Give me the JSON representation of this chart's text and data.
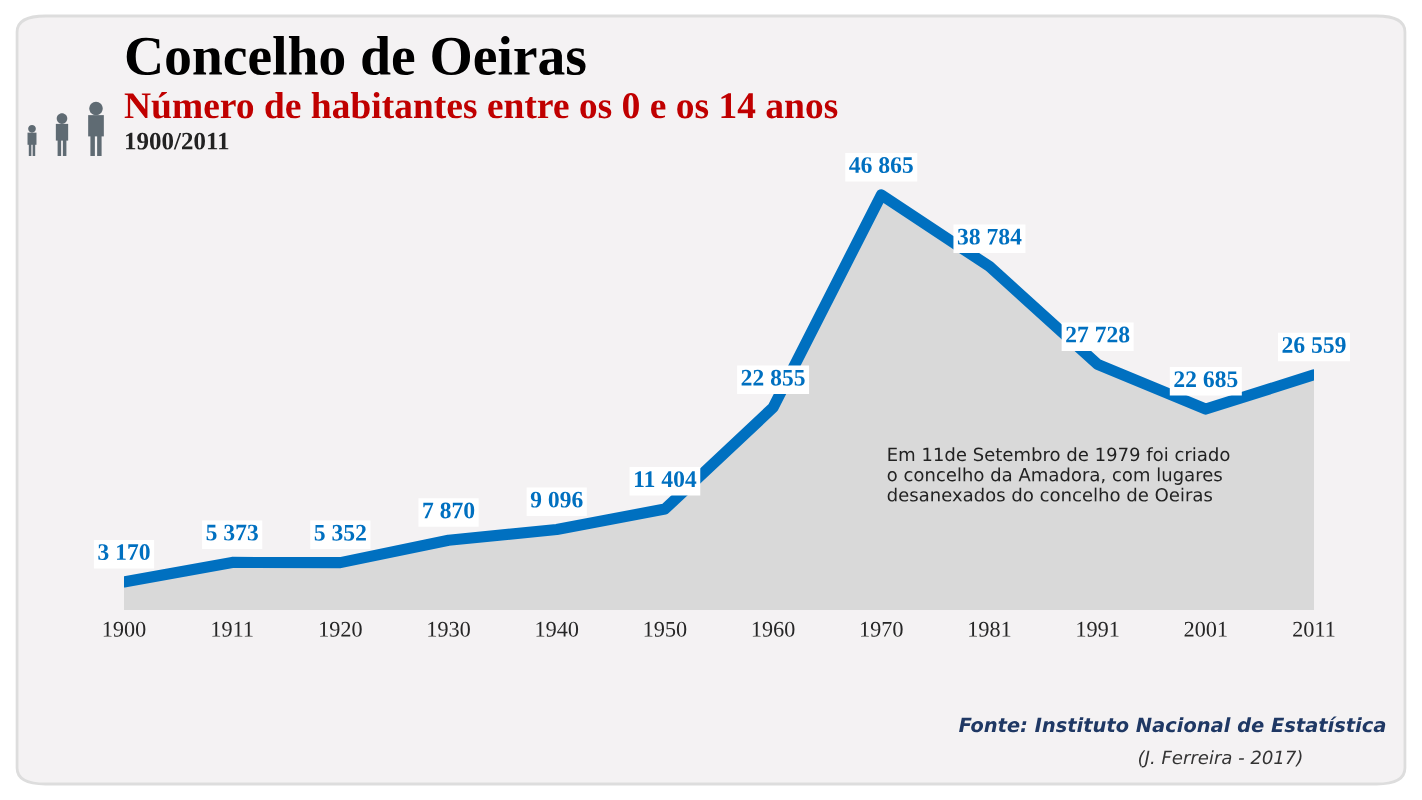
{
  "chart_data": {
    "type": "area",
    "title": "Concelho de Oeiras",
    "subtitle": "Número de habitantes entre os 0 e os 14 anos",
    "categories": [
      "1900",
      "1911",
      "1920",
      "1930",
      "1940",
      "1950",
      "1960",
      "1970",
      "1981",
      "1991",
      "2001",
      "2011"
    ],
    "series": [
      {
        "color": "#0070c0",
        "values": [
          3170,
          5373,
          5352,
          7870,
          9096,
          11404,
          22855,
          46865,
          38784,
          27728,
          22685,
          26559
        ],
        "value_labels": [
          "3 170",
          "5 373",
          "5 352",
          "7 870",
          "9 096",
          "11 404",
          "22 855",
          "46 865",
          "38 784",
          "27 728",
          "22 685",
          "26 559"
        ]
      }
    ],
    "grid": false,
    "legend": false,
    "marker": "none",
    "line_style": "solid",
    "annotations": [
      "1900/2011",
      "Em 11de Setembro de 1979 foi criado\no concelho da Amadora, com lugares\ndesanexados do concelho de Oeiras",
      "Fonte: Instituto Nacional de Estatística",
      "(J. Ferreira - 2017)"
    ]
  }
}
